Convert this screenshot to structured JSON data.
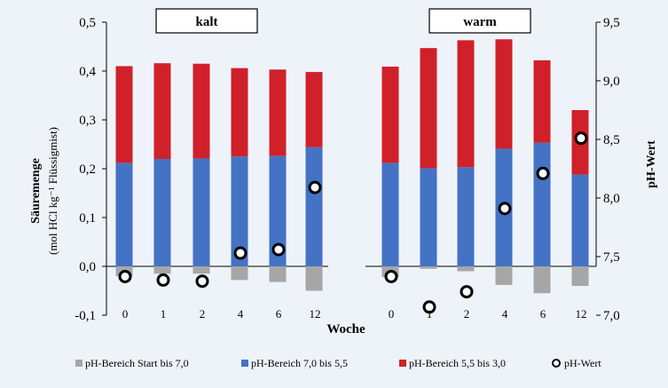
{
  "chart_data": {
    "type": "bar",
    "stacked": true,
    "xlabel": "Woche",
    "ylabel_left_line1": "Säuremenge",
    "ylabel_left_line2": "(mol HCl kg⁻¹ Flüssigmist)",
    "ylabel_right": "pH-Wert",
    "ylim": [
      -0.1,
      0.5
    ],
    "ylim_right": [
      7.0,
      9.5
    ],
    "yticks_left": [
      "-0,1",
      "0,0",
      "0,1",
      "0,2",
      "0,3",
      "0,4",
      "0,5"
    ],
    "yticks_right": [
      "7,0",
      "7,5",
      "8,0",
      "8,5",
      "9,0",
      "9,5"
    ],
    "grid": false,
    "legend_position": "bottom",
    "groups": [
      {
        "label": "kalt",
        "categories": [
          "0",
          "1",
          "2",
          "4",
          "6",
          "12"
        ]
      },
      {
        "label": "warm",
        "categories": [
          "0",
          "1",
          "2",
          "4",
          "6",
          "12"
        ]
      }
    ],
    "series": [
      {
        "name": "pH-Bereich Start bis 7,0",
        "color": "#a6a6a6",
        "values": {
          "kalt": [
            -0.02,
            -0.015,
            -0.015,
            -0.028,
            -0.032,
            -0.05
          ],
          "warm": [
            -0.022,
            -0.005,
            -0.01,
            -0.038,
            -0.055,
            -0.04
          ]
        }
      },
      {
        "name": "pH-Bereich 7,0 bis 5,5",
        "color": "#4472c4",
        "values": {
          "kalt": [
            0.212,
            0.22,
            0.221,
            0.225,
            0.226,
            0.244
          ],
          "warm": [
            0.212,
            0.201,
            0.203,
            0.241,
            0.253,
            0.188
          ]
        }
      },
      {
        "name": "pH-Bereich 5,5 bis 3,0",
        "color": "#d0202a",
        "values": {
          "kalt": [
            0.198,
            0.196,
            0.194,
            0.181,
            0.177,
            0.154
          ],
          "warm": [
            0.197,
            0.246,
            0.26,
            0.224,
            0.169,
            0.132
          ]
        }
      },
      {
        "name": "pH-Wert",
        "type": "scatter",
        "axis": "right",
        "values": {
          "kalt": [
            7.33,
            7.3,
            7.29,
            7.53,
            7.56,
            8.09
          ],
          "warm": [
            7.33,
            7.07,
            7.2,
            7.91,
            8.21,
            8.51
          ]
        }
      }
    ]
  }
}
